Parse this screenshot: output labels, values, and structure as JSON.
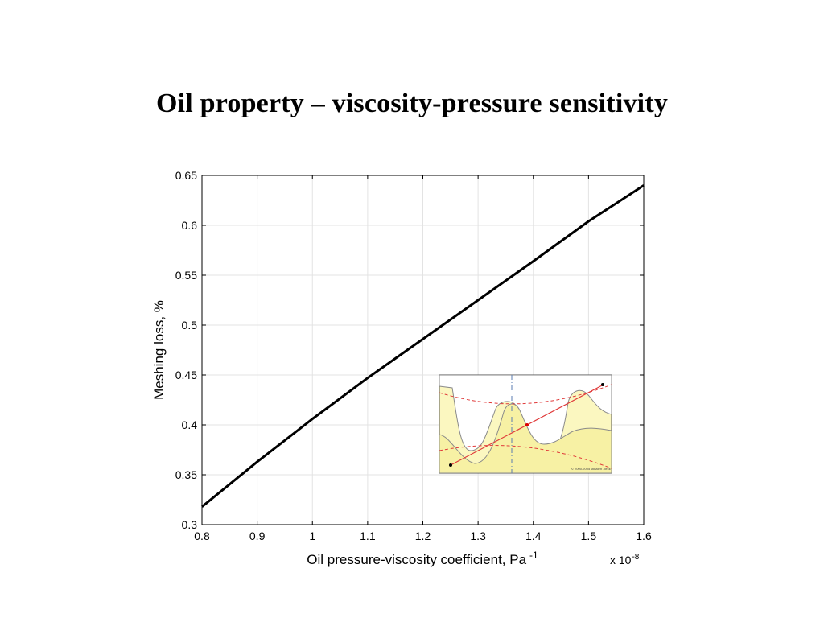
{
  "slide": {
    "title": "Oil property – viscosity-pressure sensitivity"
  },
  "chart_data": {
    "type": "line",
    "title": "",
    "xlabel": "Oil pressure-viscosity coefficient, Pa",
    "xlabel_superscript": "-1",
    "x_exponent_label": "x 10",
    "x_exponent_superscript": "-8",
    "ylabel": "Meshing loss, %",
    "xlim": [
      0.8,
      1.6
    ],
    "ylim": [
      0.3,
      0.65
    ],
    "x_ticks": [
      0.8,
      0.9,
      1.0,
      1.1,
      1.2,
      1.3,
      1.4,
      1.5,
      1.6
    ],
    "x_tick_labels": [
      "0.8",
      "0.9",
      "1",
      "1.1",
      "1.2",
      "1.3",
      "1.4",
      "1.5",
      "1.6"
    ],
    "y_ticks": [
      0.3,
      0.35,
      0.4,
      0.45,
      0.5,
      0.55,
      0.6,
      0.65
    ],
    "y_tick_labels": [
      "0.3",
      "0.35",
      "0.4",
      "0.45",
      "0.5",
      "0.55",
      "0.6",
      "0.65"
    ],
    "grid": true,
    "series": [
      {
        "x": [
          0.8,
          0.9,
          1.0,
          1.1,
          1.2,
          1.3,
          1.4,
          1.5,
          1.6
        ],
        "values": [
          0.318,
          0.363,
          0.406,
          0.447,
          0.486,
          0.525,
          0.564,
          0.604,
          0.64
        ],
        "color": "#000000"
      }
    ],
    "inset": {
      "description_icon": "gear-mesh-icon",
      "background_color": "#fbf7c0",
      "line_color": "#e03a3a",
      "credit_text": "© 2000-2005 vkhaleh .dekk"
    }
  }
}
